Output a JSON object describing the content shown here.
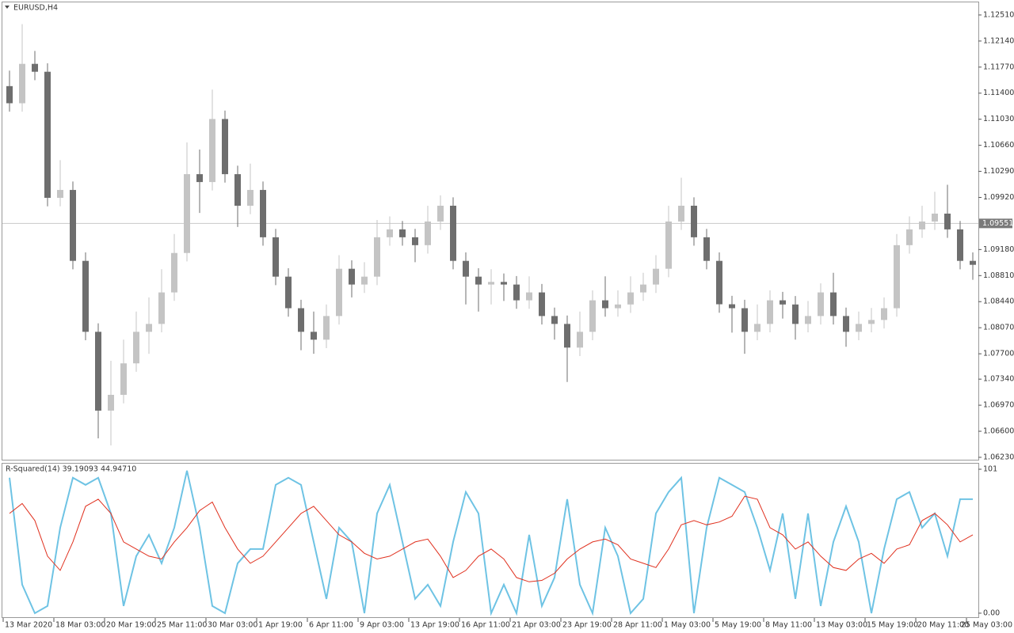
{
  "chart_data": [
    {
      "type": "candlestick",
      "title": "EURUSD,H4",
      "categories": [
        "13 Mar 2020",
        null,
        null,
        null,
        "18 Mar 03:00",
        null,
        null,
        null,
        "20 Mar 19:00",
        null,
        null,
        null,
        "25 Mar 11:00",
        null,
        null,
        null,
        "30 Mar 03:00",
        null,
        null,
        null,
        "1 Apr 19:00",
        null,
        null,
        null,
        "6 Apr 11:00",
        null,
        null,
        null,
        "9 Apr 03:00",
        null,
        null,
        null,
        "13 Apr 19:00",
        null,
        null,
        null,
        "16 Apr 11:00",
        null,
        null,
        null,
        "21 Apr 03:00",
        null,
        null,
        null,
        "23 Apr 19:00",
        null,
        null,
        null,
        "28 Apr 11:00",
        null,
        null,
        null,
        "1 May 03:00",
        null,
        null,
        null,
        "5 May 19:00",
        null,
        null,
        null,
        "8 May 11:00",
        null,
        null,
        null,
        "13 May 03:00",
        null,
        null,
        null,
        "15 May 19:00",
        null,
        null,
        null,
        "20 May 11:00",
        null,
        null,
        null,
        "25 May 03:00"
      ],
      "open": [
        1.115,
        1.11257,
        1.11816,
        1.11704,
        1.09914,
        1.10026,
        1.09019,
        1.08012,
        1.06893,
        1.07117,
        1.07564,
        1.08012,
        1.08124,
        1.08571,
        1.09131,
        1.1025,
        1.10138,
        1.11033,
        1.1025,
        1.09802,
        1.10026,
        1.09354,
        1.08795,
        1.08347,
        1.08012,
        1.079,
        1.08236,
        1.08907,
        1.08683,
        1.08795,
        1.09354,
        1.09466,
        1.09354,
        1.09242,
        1.09578,
        1.09802,
        1.09019,
        1.08795,
        1.08683,
        1.0872,
        1.08683,
        1.08459,
        1.08571,
        1.08236,
        1.08124,
        1.07788,
        1.08012,
        1.08459,
        1.08347,
        1.084,
        1.08571,
        1.08683,
        1.08907,
        1.09578,
        1.09802,
        1.09354,
        1.09019,
        1.08403,
        1.08347,
        1.08012,
        1.08124,
        1.08459,
        1.084,
        1.08124,
        1.08236,
        1.08571,
        1.08236,
        1.08012,
        1.08124,
        1.0818,
        1.08347,
        1.09242,
        1.09466,
        1.09578,
        1.0969,
        1.09466,
        1.09019
      ],
      "high": [
        1.1172,
        1.1238,
        1.12,
        1.11824,
        1.1045,
        1.10146,
        1.09139,
        1.08132,
        1.076,
        1.079,
        1.083,
        1.085,
        1.089,
        1.094,
        1.107,
        1.106,
        1.1145,
        1.11153,
        1.1037,
        1.104,
        1.10146,
        1.09474,
        1.08915,
        1.08467,
        1.083,
        1.084,
        1.091,
        1.09027,
        1.09,
        1.096,
        1.0965,
        1.09586,
        1.09474,
        1.098,
        1.0995,
        1.09922,
        1.09139,
        1.08915,
        1.089,
        1.0884,
        1.08803,
        1.088,
        1.08691,
        1.08356,
        1.08244,
        1.083,
        1.086,
        1.088,
        1.086,
        1.088,
        1.0885,
        1.091,
        1.098,
        1.102,
        1.09922,
        1.09474,
        1.09139,
        1.08523,
        1.08467,
        1.084,
        1.086,
        1.08579,
        1.0852,
        1.0845,
        1.087,
        1.0885,
        1.08356,
        1.083,
        1.0835,
        1.085,
        1.094,
        1.0965,
        1.098,
        1.1,
        1.101,
        1.09586,
        1.09139
      ],
      "low": [
        1.11137,
        1.11137,
        1.11584,
        1.09794,
        1.09794,
        1.08899,
        1.07892,
        1.065,
        1.064,
        1.06997,
        1.07444,
        1.077,
        1.08004,
        1.08451,
        1.09011,
        1.097,
        1.10018,
        1.1013,
        1.095,
        1.09682,
        1.09234,
        1.08675,
        1.08227,
        1.0775,
        1.077,
        1.0778,
        1.08116,
        1.085,
        1.08563,
        1.08675,
        1.09234,
        1.09234,
        1.09,
        1.09122,
        1.09458,
        1.08899,
        1.084,
        1.083,
        1.084,
        1.0845,
        1.08339,
        1.08339,
        1.08116,
        1.079,
        1.073,
        1.07668,
        1.07892,
        1.08227,
        1.08227,
        1.0828,
        1.08451,
        1.08563,
        1.08787,
        1.09458,
        1.09234,
        1.08899,
        1.08283,
        1.08,
        1.077,
        1.07892,
        1.08004,
        1.082,
        1.079,
        1.08004,
        1.08116,
        1.08116,
        1.078,
        1.07892,
        1.08004,
        1.0806,
        1.08227,
        1.09122,
        1.09346,
        1.09458,
        1.09346,
        1.08899,
        1.0875
      ],
      "close": [
        1.11257,
        1.11816,
        1.11704,
        1.09914,
        1.10026,
        1.09019,
        1.08012,
        1.06893,
        1.07117,
        1.07564,
        1.08012,
        1.08124,
        1.08571,
        1.09131,
        1.1025,
        1.10138,
        1.11033,
        1.1025,
        1.09802,
        1.10026,
        1.09354,
        1.08795,
        1.08347,
        1.08012,
        1.079,
        1.08236,
        1.08907,
        1.08683,
        1.08795,
        1.09354,
        1.09466,
        1.09354,
        1.09242,
        1.09578,
        1.09802,
        1.09019,
        1.08795,
        1.08683,
        1.0872,
        1.08683,
        1.08459,
        1.08571,
        1.08236,
        1.08124,
        1.07788,
        1.08012,
        1.08459,
        1.08347,
        1.084,
        1.08571,
        1.08683,
        1.08907,
        1.09578,
        1.09802,
        1.09354,
        1.09019,
        1.08403,
        1.08347,
        1.08012,
        1.08124,
        1.08459,
        1.084,
        1.08124,
        1.08236,
        1.08571,
        1.08236,
        1.08012,
        1.08124,
        1.0818,
        1.08347,
        1.09242,
        1.09466,
        1.09578,
        1.0969,
        1.09466,
        1.09019,
        1.08963
      ],
      "up_color": "#c4c4c4",
      "down_color": "#6e6e6e",
      "current_price": 1.09551,
      "ylim": [
        1.06196,
        1.12689
      ],
      "yticks": [
        {
          "value": 1.1251,
          "label": "1.12510"
        },
        {
          "value": 1.1214,
          "label": "1.12140"
        },
        {
          "value": 1.1177,
          "label": "1.11770"
        },
        {
          "value": 1.114,
          "label": "1.11400"
        },
        {
          "value": 1.1103,
          "label": "1.11030"
        },
        {
          "value": 1.1066,
          "label": "1.10660"
        },
        {
          "value": 1.1029,
          "label": "1.10290"
        },
        {
          "value": 1.0992,
          "label": "1.09920"
        },
        {
          "value": 1.0918,
          "label": "1.09180"
        },
        {
          "value": 1.0881,
          "label": "1.08810"
        },
        {
          "value": 1.0844,
          "label": "1.08440"
        },
        {
          "value": 1.0807,
          "label": "1.08070"
        },
        {
          "value": 1.077,
          "label": "1.07700"
        },
        {
          "value": 1.0734,
          "label": "1.07340"
        },
        {
          "value": 1.0697,
          "label": "1.06970"
        },
        {
          "value": 1.066,
          "label": "1.06600"
        },
        {
          "value": 1.0623,
          "label": "1.06230"
        }
      ]
    },
    {
      "type": "line",
      "title": "R-Squared(14) 39.19093 44.94710",
      "series": [
        {
          "color": "#6ec3e4",
          "values": [
            95,
            20,
            0,
            5,
            60,
            95,
            90,
            95,
            70,
            5,
            40,
            55,
            35,
            60,
            100,
            60,
            5,
            0,
            35,
            45,
            45,
            90,
            95,
            90,
            50,
            10,
            60,
            50,
            0,
            70,
            90,
            50,
            10,
            20,
            5,
            50,
            85,
            70,
            0,
            20,
            0,
            55,
            5,
            25,
            80,
            20,
            0,
            60,
            40,
            0,
            10,
            70,
            85,
            95,
            0,
            60,
            95,
            90,
            85,
            60,
            30,
            70,
            10,
            70,
            5,
            50,
            75,
            50,
            0,
            45,
            80,
            85,
            60,
            70,
            40,
            80,
            80
          ]
        },
        {
          "color": "#e0301e",
          "values": [
            70,
            77,
            65,
            40,
            30,
            50,
            75,
            80,
            70,
            50,
            45,
            40,
            38,
            50,
            60,
            72,
            78,
            60,
            45,
            35,
            40,
            50,
            60,
            70,
            75,
            65,
            55,
            50,
            42,
            38,
            40,
            45,
            50,
            52,
            40,
            25,
            30,
            40,
            45,
            38,
            25,
            22,
            23,
            28,
            38,
            45,
            50,
            52,
            48,
            38,
            35,
            32,
            45,
            62,
            65,
            62,
            64,
            68,
            82,
            80,
            60,
            55,
            45,
            50,
            40,
            32,
            30,
            38,
            42,
            35,
            45,
            48,
            65,
            70,
            62,
            50,
            55
          ]
        }
      ],
      "ylim": [
        -2.8,
        104.9
      ],
      "yticks": [
        101,
        {
          "value": 0,
          "label": "0.00"
        }
      ]
    }
  ]
}
